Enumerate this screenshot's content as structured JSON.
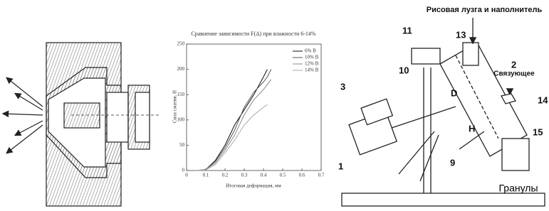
{
  "chart_data": {
    "type": "line",
    "title": "Сравнение зависимости F(Δ) при влажности 6-14%",
    "x_label": "Итоговая деформация, мм",
    "y_label": "Сила сжатия, Н",
    "x": [
      0.05,
      0.1,
      0.15,
      0.2,
      0.25,
      0.3,
      0.35,
      0.4,
      0.42,
      0.44
    ],
    "series": [
      {
        "name": "6% В",
        "color": "#111111",
        "values": [
          0,
          2,
          20,
          50,
          90,
          120,
          150,
          185,
          200,
          null
        ]
      },
      {
        "name": "10% В",
        "color": "#555555",
        "values": [
          0,
          2,
          18,
          45,
          80,
          125,
          155,
          175,
          185,
          200
        ]
      },
      {
        "name": "12% В",
        "color": "#888888",
        "values": [
          0,
          2,
          15,
          40,
          70,
          110,
          140,
          160,
          170,
          180
        ]
      },
      {
        "name": "14% В",
        "color": "#aaaaaa",
        "values": [
          0,
          1,
          12,
          35,
          60,
          90,
          110,
          125,
          130,
          null
        ]
      }
    ],
    "xlim": [
      0,
      0.7
    ],
    "xticks": [
      0,
      0.1,
      0.2,
      0.3,
      0.4,
      0.5,
      0.6,
      0.7
    ],
    "ylim": [
      0,
      250
    ],
    "yticks": [
      0,
      50,
      100,
      150,
      200,
      250
    ],
    "legend": "upper right"
  },
  "diagram": {
    "feed_label": "Рисовая лузга и наполнитель",
    "binder_label": "Связующее",
    "output_label": "Гранулы",
    "dimension_d": "D",
    "dimension_h": "H",
    "part_numbers": [
      "1",
      "2",
      "3",
      "9",
      "10",
      "11",
      "13",
      "14",
      "15"
    ]
  }
}
